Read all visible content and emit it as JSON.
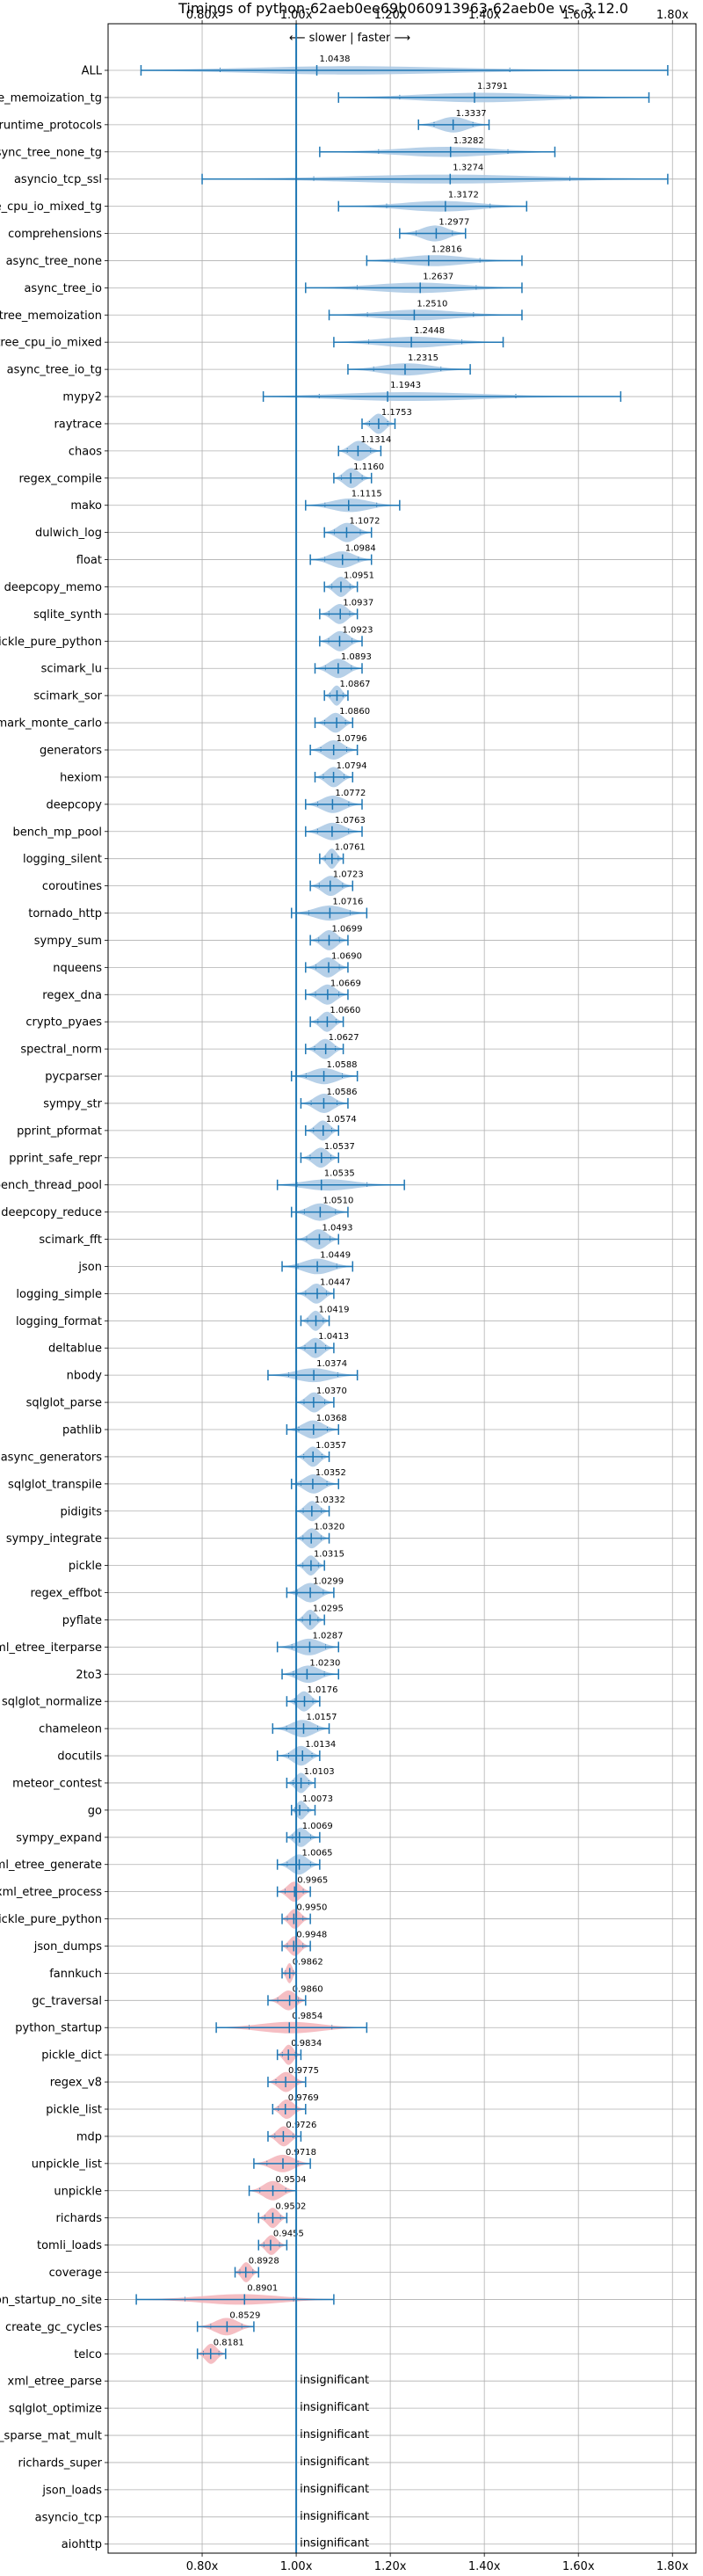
{
  "chart_data": {
    "type": "violin",
    "title": "Timings of python-62aeb0ee69b060913963-62aeb0e vs. 3.12.0",
    "direction_label": "⟵ slower | faster ⟶",
    "x_ticks": [
      {
        "value": 0.8,
        "label": "0.80x"
      },
      {
        "value": 1.0,
        "label": "1.00x"
      },
      {
        "value": 1.2,
        "label": "1.20x"
      },
      {
        "value": 1.4,
        "label": "1.40x"
      },
      {
        "value": 1.6,
        "label": "1.60x"
      },
      {
        "value": 1.8,
        "label": "1.80x"
      }
    ],
    "xlim": [
      0.6,
      1.85
    ],
    "reference_line": 1.0,
    "grid": true,
    "colors": {
      "faster": "#a9c8e4",
      "slower": "#f3b3b8",
      "whisker": "#1f77b4",
      "reference": "#1f77b4"
    },
    "categories": [
      "ALL",
      "async_tree_memoization_tg",
      "typing_runtime_protocols",
      "async_tree_none_tg",
      "asyncio_tcp_ssl",
      "async_tree_cpu_io_mixed_tg",
      "comprehensions",
      "async_tree_none",
      "async_tree_io",
      "async_tree_memoization",
      "async_tree_cpu_io_mixed",
      "async_tree_io_tg",
      "mypy2",
      "raytrace",
      "chaos",
      "regex_compile",
      "mako",
      "dulwich_log",
      "float",
      "deepcopy_memo",
      "sqlite_synth",
      "pickle_pure_python",
      "scimark_lu",
      "scimark_sor",
      "scimark_monte_carlo",
      "generators",
      "hexiom",
      "deepcopy",
      "bench_mp_pool",
      "logging_silent",
      "coroutines",
      "tornado_http",
      "sympy_sum",
      "nqueens",
      "regex_dna",
      "crypto_pyaes",
      "spectral_norm",
      "pycparser",
      "sympy_str",
      "pprint_pformat",
      "pprint_safe_repr",
      "bench_thread_pool",
      "deepcopy_reduce",
      "scimark_fft",
      "json",
      "logging_simple",
      "logging_format",
      "deltablue",
      "nbody",
      "sqlglot_parse",
      "pathlib",
      "async_generators",
      "sqlglot_transpile",
      "pidigits",
      "sympy_integrate",
      "pickle",
      "regex_effbot",
      "pyflate",
      "xml_etree_iterparse",
      "2to3",
      "sqlglot_normalize",
      "chameleon",
      "docutils",
      "meteor_contest",
      "go",
      "sympy_expand",
      "xml_etree_generate",
      "xml_etree_process",
      "unpickle_pure_python",
      "json_dumps",
      "fannkuch",
      "gc_traversal",
      "python_startup",
      "pickle_dict",
      "regex_v8",
      "pickle_list",
      "mdp",
      "unpickle_list",
      "unpickle",
      "richards",
      "tomli_loads",
      "coverage",
      "python_startup_no_site",
      "create_gc_cycles",
      "telco",
      "xml_etree_parse",
      "sqlglot_optimize",
      "scimark_sparse_mat_mult",
      "richards_super",
      "json_loads",
      "asyncio_tcp",
      "aiohttp"
    ],
    "values": [
      1.0438,
      1.3791,
      1.3337,
      1.3282,
      1.3274,
      1.3172,
      1.2977,
      1.2816,
      1.2637,
      1.251,
      1.2448,
      1.2315,
      1.1943,
      1.1753,
      1.1314,
      1.116,
      1.1115,
      1.1072,
      1.0984,
      1.0951,
      1.0937,
      1.0923,
      1.0893,
      1.0867,
      1.086,
      1.0796,
      1.0794,
      1.0772,
      1.0763,
      1.0761,
      1.0723,
      1.0716,
      1.0699,
      1.069,
      1.0669,
      1.066,
      1.0627,
      1.0588,
      1.0586,
      1.0574,
      1.0537,
      1.0535,
      1.051,
      1.0493,
      1.0449,
      1.0447,
      1.0419,
      1.0413,
      1.0374,
      1.037,
      1.0368,
      1.0357,
      1.0352,
      1.0332,
      1.032,
      1.0315,
      1.0299,
      1.0295,
      1.0287,
      1.023,
      1.0176,
      1.0157,
      1.0134,
      1.0103,
      1.0073,
      1.0069,
      1.0065,
      0.9965,
      0.995,
      0.9948,
      0.9862,
      0.986,
      0.9854,
      0.9834,
      0.9775,
      0.9769,
      0.9726,
      0.9718,
      0.9504,
      0.9502,
      0.9455,
      0.8928,
      0.8901,
      0.8529,
      0.8181,
      null,
      null,
      null,
      null,
      null,
      null,
      null
    ],
    "value_labels": [
      "1.0438",
      "1.3791",
      "1.3337",
      "1.3282",
      "1.3274",
      "1.3172",
      "1.2977",
      "1.2816",
      "1.2637",
      "1.2510",
      "1.2448",
      "1.2315",
      "1.1943",
      "1.1753",
      "1.1314",
      "1.1160",
      "1.1115",
      "1.1072",
      "1.0984",
      "1.0951",
      "1.0937",
      "1.0923",
      "1.0893",
      "1.0867",
      "1.0860",
      "1.0796",
      "1.0794",
      "1.0772",
      "1.0763",
      "1.0761",
      "1.0723",
      "1.0716",
      "1.0699",
      "1.0690",
      "1.0669",
      "1.0660",
      "1.0627",
      "1.0588",
      "1.0586",
      "1.0574",
      "1.0537",
      "1.0535",
      "1.0510",
      "1.0493",
      "1.0449",
      "1.0447",
      "1.0419",
      "1.0413",
      "1.0374",
      "1.0370",
      "1.0368",
      "1.0357",
      "1.0352",
      "1.0332",
      "1.0320",
      "1.0315",
      "1.0299",
      "1.0295",
      "1.0287",
      "1.0230",
      "1.0176",
      "1.0157",
      "1.0134",
      "1.0103",
      "1.0073",
      "1.0069",
      "1.0065",
      "0.9965",
      "0.9950",
      "0.9948",
      "0.9862",
      "0.9860",
      "0.9854",
      "0.9834",
      "0.9775",
      "0.9769",
      "0.9726",
      "0.9718",
      "0.9504",
      "0.9502",
      "0.9455",
      "0.8928",
      "0.8901",
      "0.8529",
      "0.8181",
      "insignificant",
      "insignificant",
      "insignificant",
      "insignificant",
      "insignificant",
      "insignificant",
      "insignificant"
    ],
    "ranges": [
      [
        0.67,
        1.79
      ],
      [
        1.09,
        1.75
      ],
      [
        1.26,
        1.41
      ],
      [
        1.05,
        1.55
      ],
      [
        0.8,
        1.79
      ],
      [
        1.09,
        1.49
      ],
      [
        1.22,
        1.36
      ],
      [
        1.15,
        1.48
      ],
      [
        1.02,
        1.48
      ],
      [
        1.07,
        1.48
      ],
      [
        1.08,
        1.44
      ],
      [
        1.11,
        1.37
      ],
      [
        0.93,
        1.69
      ],
      [
        1.14,
        1.21
      ],
      [
        1.09,
        1.18
      ],
      [
        1.08,
        1.16
      ],
      [
        1.02,
        1.22
      ],
      [
        1.06,
        1.16
      ],
      [
        1.03,
        1.16
      ],
      [
        1.06,
        1.13
      ],
      [
        1.05,
        1.13
      ],
      [
        1.05,
        1.14
      ],
      [
        1.04,
        1.14
      ],
      [
        1.06,
        1.11
      ],
      [
        1.04,
        1.12
      ],
      [
        1.03,
        1.13
      ],
      [
        1.04,
        1.12
      ],
      [
        1.02,
        1.14
      ],
      [
        1.02,
        1.14
      ],
      [
        1.05,
        1.1
      ],
      [
        1.03,
        1.12
      ],
      [
        0.99,
        1.15
      ],
      [
        1.03,
        1.11
      ],
      [
        1.02,
        1.11
      ],
      [
        1.02,
        1.11
      ],
      [
        1.03,
        1.1
      ],
      [
        1.02,
        1.1
      ],
      [
        0.99,
        1.13
      ],
      [
        1.01,
        1.11
      ],
      [
        1.02,
        1.09
      ],
      [
        1.01,
        1.09
      ],
      [
        0.96,
        1.23
      ],
      [
        0.99,
        1.11
      ],
      [
        1.0,
        1.09
      ],
      [
        0.97,
        1.12
      ],
      [
        1.0,
        1.08
      ],
      [
        1.01,
        1.07
      ],
      [
        1.0,
        1.08
      ],
      [
        0.94,
        1.13
      ],
      [
        1.0,
        1.08
      ],
      [
        0.98,
        1.09
      ],
      [
        1.0,
        1.07
      ],
      [
        0.99,
        1.09
      ],
      [
        1.0,
        1.07
      ],
      [
        1.0,
        1.07
      ],
      [
        1.0,
        1.06
      ],
      [
        0.98,
        1.08
      ],
      [
        1.0,
        1.06
      ],
      [
        0.96,
        1.09
      ],
      [
        0.97,
        1.09
      ],
      [
        0.98,
        1.05
      ],
      [
        0.95,
        1.07
      ],
      [
        0.96,
        1.05
      ],
      [
        0.98,
        1.04
      ],
      [
        0.99,
        1.04
      ],
      [
        0.98,
        1.05
      ],
      [
        0.96,
        1.05
      ],
      [
        0.96,
        1.03
      ],
      [
        0.97,
        1.03
      ],
      [
        0.97,
        1.03
      ],
      [
        0.97,
        1.0
      ],
      [
        0.94,
        1.02
      ],
      [
        0.83,
        1.15
      ],
      [
        0.96,
        1.01
      ],
      [
        0.94,
        1.02
      ],
      [
        0.95,
        1.02
      ],
      [
        0.94,
        1.01
      ],
      [
        0.91,
        1.03
      ],
      [
        0.9,
        1.0
      ],
      [
        0.92,
        0.98
      ],
      [
        0.92,
        0.98
      ],
      [
        0.87,
        0.92
      ],
      [
        0.66,
        1.08
      ],
      [
        0.79,
        0.91
      ],
      [
        0.79,
        0.85
      ],
      null,
      null,
      null,
      null,
      null,
      null,
      null
    ]
  }
}
